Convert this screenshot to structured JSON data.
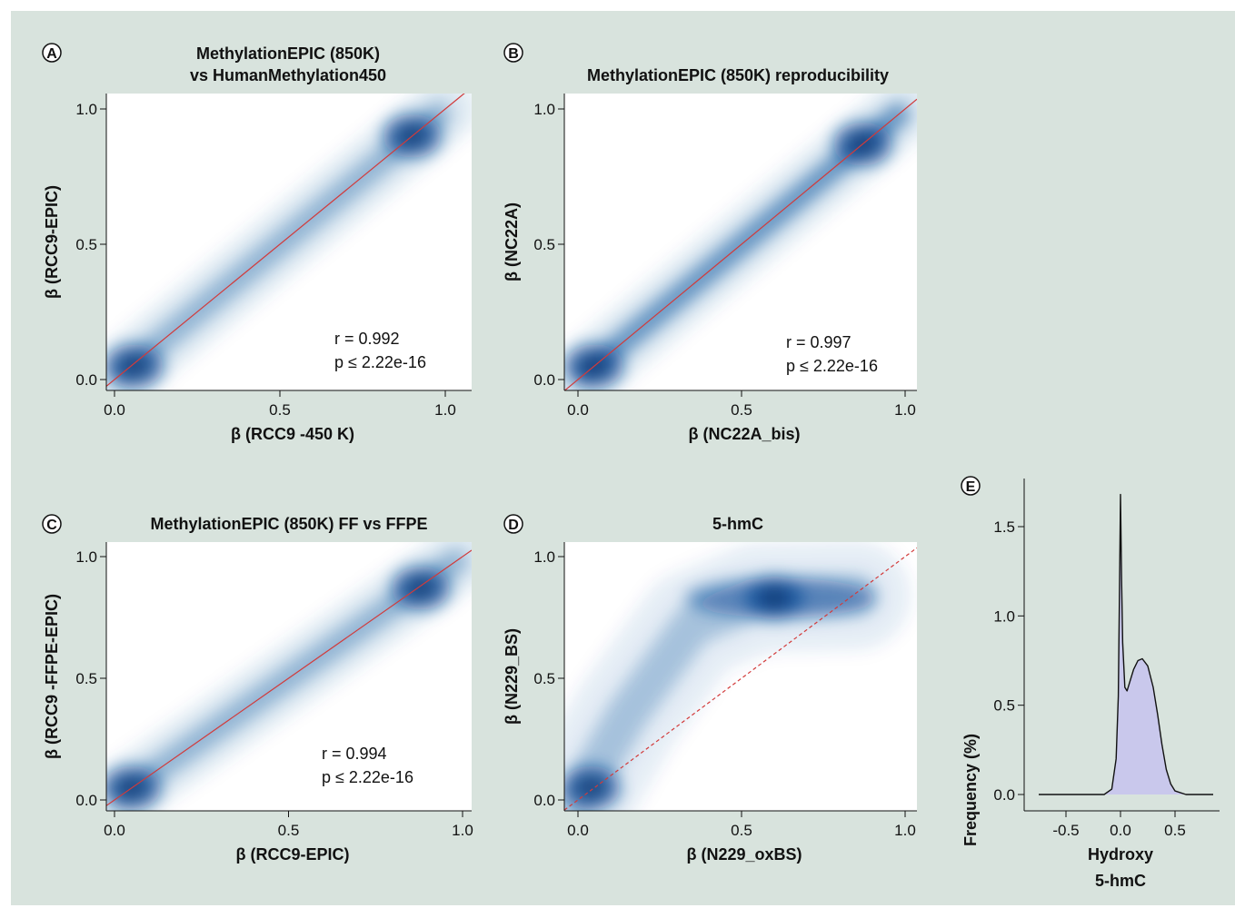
{
  "figure": {
    "colors": {
      "background": "#d8e3dd",
      "density_dark": "#0b4f9a",
      "diagonal": "#d23a3a",
      "histogram_fill": "#c9c8ec",
      "histogram_line": "#111111"
    }
  },
  "chart_data": [
    {
      "type": "heatmap",
      "panel": "A",
      "title_lines": [
        "MethylationEPIC (850K)",
        "vs HumanMethylation450"
      ],
      "xlabel": "β (RCC9 -450 K)",
      "ylabel": "β (RCC9-EPIC)",
      "xlim": [
        0,
        1
      ],
      "ylim": [
        0,
        1
      ],
      "xticks": [
        "0.0",
        "0.5",
        "1.0"
      ],
      "yticks": [
        "0.0",
        "0.5",
        "1.0"
      ],
      "stat_lines": [
        "r = 0.992",
        "p ≤ 2.22e-16"
      ],
      "diagonal": "solid",
      "clusters": [
        [
          0.06,
          0.05
        ],
        [
          0.9,
          0.9
        ]
      ]
    },
    {
      "type": "heatmap",
      "panel": "B",
      "title_lines": [
        "MethylationEPIC (850K) reproducibility"
      ],
      "xlabel": "β (NC22A_bis)",
      "ylabel": "β (NC22A)",
      "xlim": [
        0,
        1
      ],
      "ylim": [
        0,
        1
      ],
      "xticks": [
        "0.0",
        "0.5",
        "1.0"
      ],
      "yticks": [
        "0.0",
        "0.5",
        "1.0"
      ],
      "stat_lines": [
        "r = 0.997",
        "p ≤ 2.22e-16"
      ],
      "diagonal": "solid",
      "clusters": [
        [
          0.05,
          0.05
        ],
        [
          0.87,
          0.87
        ]
      ]
    },
    {
      "type": "heatmap",
      "panel": "C",
      "title_lines": [
        "MethylationEPIC (850K) FF vs FFPE"
      ],
      "xlabel": "β (RCC9-EPIC)",
      "ylabel": "β (RCC9 -FFPE-EPIC)",
      "xlim": [
        0,
        1
      ],
      "ylim": [
        0,
        1
      ],
      "xticks": [
        "0.0",
        "0.5",
        "1.0"
      ],
      "yticks": [
        "0.0",
        "0.5",
        "1.0"
      ],
      "stat_lines": [
        "r = 0.994",
        "p ≤ 2.22e-16"
      ],
      "diagonal": "solid",
      "clusters": [
        [
          0.05,
          0.05
        ],
        [
          0.88,
          0.87
        ]
      ]
    },
    {
      "type": "heatmap",
      "panel": "D",
      "title_lines": [
        "5-hmC"
      ],
      "xlabel": "β (N229_oxBS)",
      "ylabel": "β (N229_BS)",
      "xlim": [
        0,
        1
      ],
      "ylim": [
        0,
        1
      ],
      "xticks": [
        "0.0",
        "0.5",
        "1.0"
      ],
      "yticks": [
        "0.0",
        "0.5",
        "1.0"
      ],
      "stat_lines": [],
      "diagonal": "dashed",
      "clusters": [
        [
          0.04,
          0.05
        ],
        [
          0.6,
          0.83
        ]
      ]
    },
    {
      "type": "area",
      "panel": "E",
      "title_lines": [],
      "xlabel_lines": [
        "Hydroxy",
        "5-hmC"
      ],
      "ylabel": "Frequency  (%)",
      "xlim": [
        -0.85,
        0.9
      ],
      "ylim": [
        0,
        1.78
      ],
      "xticks": [
        "-0.5",
        "0.0",
        "0.5"
      ],
      "yticks": [
        "0.0",
        "0.5",
        "1.0",
        "1.5"
      ],
      "x": [
        -0.75,
        -0.3,
        -0.15,
        -0.08,
        -0.04,
        -0.02,
        -0.01,
        0.0,
        0.01,
        0.02,
        0.04,
        0.06,
        0.08,
        0.12,
        0.16,
        0.2,
        0.25,
        0.3,
        0.34,
        0.38,
        0.42,
        0.46,
        0.5,
        0.6,
        0.85
      ],
      "y": [
        0.0,
        0.0,
        0.0,
        0.03,
        0.2,
        0.55,
        1.1,
        1.68,
        1.2,
        0.85,
        0.6,
        0.58,
        0.62,
        0.7,
        0.75,
        0.76,
        0.72,
        0.6,
        0.45,
        0.28,
        0.14,
        0.06,
        0.02,
        0.0,
        0.0
      ]
    }
  ]
}
